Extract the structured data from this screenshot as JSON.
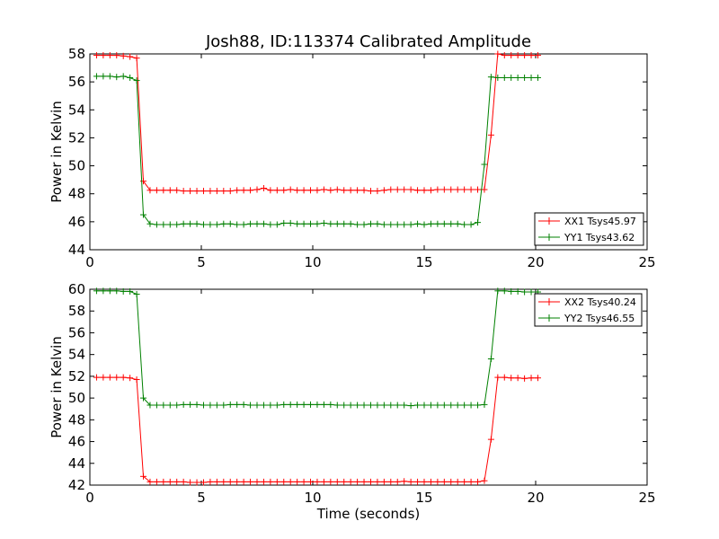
{
  "chart_data": [
    {
      "type": "line",
      "title": "Josh88, ID:113374 Calibrated Amplitude",
      "xlabel": "",
      "ylabel": "Power in Kelvin",
      "xlim": [
        0,
        25
      ],
      "ylim": [
        44,
        58
      ],
      "xticks": [
        "0",
        "5",
        "10",
        "15",
        "20",
        "25"
      ],
      "yticks": [
        "44",
        "46",
        "48",
        "50",
        "52",
        "54",
        "56",
        "58"
      ],
      "legend_position": "lower-right",
      "x": [
        0.3,
        0.6,
        0.9,
        1.2,
        1.5,
        1.8,
        2.1,
        2.4,
        2.7,
        3.0,
        3.3,
        3.6,
        3.9,
        4.2,
        4.5,
        4.8,
        5.1,
        5.4,
        5.7,
        6.0,
        6.3,
        6.6,
        6.9,
        7.2,
        7.5,
        7.8,
        8.1,
        8.4,
        8.7,
        9.0,
        9.3,
        9.6,
        9.9,
        10.2,
        10.5,
        10.8,
        11.1,
        11.4,
        11.7,
        12.0,
        12.3,
        12.6,
        12.9,
        13.2,
        13.5,
        13.8,
        14.1,
        14.4,
        14.7,
        15.0,
        15.3,
        15.6,
        15.9,
        16.2,
        16.5,
        16.8,
        17.1,
        17.4,
        17.7,
        18.0,
        18.3,
        18.6,
        18.9,
        19.2,
        19.5,
        19.8,
        20.1
      ],
      "series": [
        {
          "name": "XX1 Tsys45.97",
          "color": "#ff0000",
          "values": [
            57.9,
            57.9,
            57.9,
            57.9,
            57.85,
            57.8,
            57.7,
            48.9,
            48.25,
            48.25,
            48.25,
            48.25,
            48.25,
            48.2,
            48.2,
            48.2,
            48.2,
            48.2,
            48.2,
            48.2,
            48.2,
            48.25,
            48.25,
            48.25,
            48.3,
            48.4,
            48.25,
            48.25,
            48.25,
            48.3,
            48.25,
            48.25,
            48.25,
            48.25,
            48.3,
            48.25,
            48.3,
            48.25,
            48.25,
            48.25,
            48.25,
            48.2,
            48.2,
            48.25,
            48.3,
            48.3,
            48.3,
            48.3,
            48.25,
            48.25,
            48.25,
            48.3,
            48.3,
            48.3,
            48.3,
            48.3,
            48.3,
            48.3,
            48.3,
            52.2,
            58.0,
            57.9,
            57.9,
            57.9,
            57.9,
            57.9,
            57.9
          ]
        },
        {
          "name": "YY1 Tsys43.62",
          "color": "#008000",
          "values": [
            56.4,
            56.4,
            56.4,
            56.35,
            56.4,
            56.3,
            56.1,
            46.5,
            45.85,
            45.8,
            45.8,
            45.8,
            45.8,
            45.85,
            45.85,
            45.85,
            45.8,
            45.8,
            45.8,
            45.85,
            45.85,
            45.8,
            45.8,
            45.85,
            45.85,
            45.85,
            45.8,
            45.8,
            45.9,
            45.9,
            45.85,
            45.85,
            45.85,
            45.85,
            45.9,
            45.85,
            45.85,
            45.85,
            45.85,
            45.8,
            45.8,
            45.85,
            45.85,
            45.8,
            45.8,
            45.8,
            45.8,
            45.8,
            45.85,
            45.8,
            45.85,
            45.85,
            45.85,
            45.85,
            45.85,
            45.8,
            45.8,
            45.95,
            50.1,
            56.35,
            56.3,
            56.3,
            56.3,
            56.3,
            56.3,
            56.3,
            56.3
          ]
        }
      ]
    },
    {
      "type": "line",
      "title": "",
      "xlabel": "Time (seconds)",
      "ylabel": "Power in Kelvin",
      "xlim": [
        0,
        25
      ],
      "ylim": [
        42,
        60
      ],
      "xticks": [
        "0",
        "5",
        "10",
        "15",
        "20",
        "25"
      ],
      "yticks": [
        "42",
        "44",
        "46",
        "48",
        "50",
        "52",
        "54",
        "56",
        "58",
        "60"
      ],
      "legend_position": "upper-right",
      "x": [
        0.3,
        0.6,
        0.9,
        1.2,
        1.5,
        1.8,
        2.1,
        2.4,
        2.7,
        3.0,
        3.3,
        3.6,
        3.9,
        4.2,
        4.5,
        4.8,
        5.1,
        5.4,
        5.7,
        6.0,
        6.3,
        6.6,
        6.9,
        7.2,
        7.5,
        7.8,
        8.1,
        8.4,
        8.7,
        9.0,
        9.3,
        9.6,
        9.9,
        10.2,
        10.5,
        10.8,
        11.1,
        11.4,
        11.7,
        12.0,
        12.3,
        12.6,
        12.9,
        13.2,
        13.5,
        13.8,
        14.1,
        14.4,
        14.7,
        15.0,
        15.3,
        15.6,
        15.9,
        16.2,
        16.5,
        16.8,
        17.1,
        17.4,
        17.7,
        18.0,
        18.3,
        18.6,
        18.9,
        19.2,
        19.5,
        19.8,
        20.1
      ],
      "series": [
        {
          "name": "XX2 Tsys40.24",
          "color": "#ff0000",
          "values": [
            51.9,
            51.9,
            51.9,
            51.9,
            51.9,
            51.85,
            51.7,
            42.8,
            42.3,
            42.3,
            42.3,
            42.3,
            42.3,
            42.3,
            42.25,
            42.25,
            42.25,
            42.3,
            42.3,
            42.3,
            42.3,
            42.3,
            42.3,
            42.3,
            42.3,
            42.3,
            42.3,
            42.3,
            42.3,
            42.3,
            42.3,
            42.3,
            42.3,
            42.3,
            42.3,
            42.3,
            42.3,
            42.3,
            42.3,
            42.3,
            42.3,
            42.3,
            42.3,
            42.3,
            42.3,
            42.3,
            42.35,
            42.3,
            42.3,
            42.3,
            42.3,
            42.3,
            42.3,
            42.3,
            42.3,
            42.3,
            42.3,
            42.3,
            42.4,
            46.2,
            51.9,
            51.9,
            51.85,
            51.85,
            51.8,
            51.85,
            51.85
          ]
        },
        {
          "name": "YY2 Tsys46.55",
          "color": "#008000",
          "values": [
            59.85,
            59.85,
            59.85,
            59.85,
            59.8,
            59.8,
            59.55,
            50.0,
            49.35,
            49.35,
            49.35,
            49.35,
            49.35,
            49.4,
            49.4,
            49.4,
            49.35,
            49.35,
            49.35,
            49.35,
            49.4,
            49.4,
            49.4,
            49.35,
            49.35,
            49.35,
            49.35,
            49.35,
            49.4,
            49.4,
            49.4,
            49.4,
            49.4,
            49.4,
            49.4,
            49.4,
            49.35,
            49.35,
            49.35,
            49.35,
            49.35,
            49.35,
            49.35,
            49.35,
            49.35,
            49.35,
            49.35,
            49.3,
            49.35,
            49.35,
            49.35,
            49.35,
            49.35,
            49.35,
            49.35,
            49.35,
            49.35,
            49.35,
            49.4,
            53.6,
            59.85,
            59.85,
            59.8,
            59.8,
            59.75,
            59.75,
            59.75
          ]
        }
      ]
    }
  ]
}
